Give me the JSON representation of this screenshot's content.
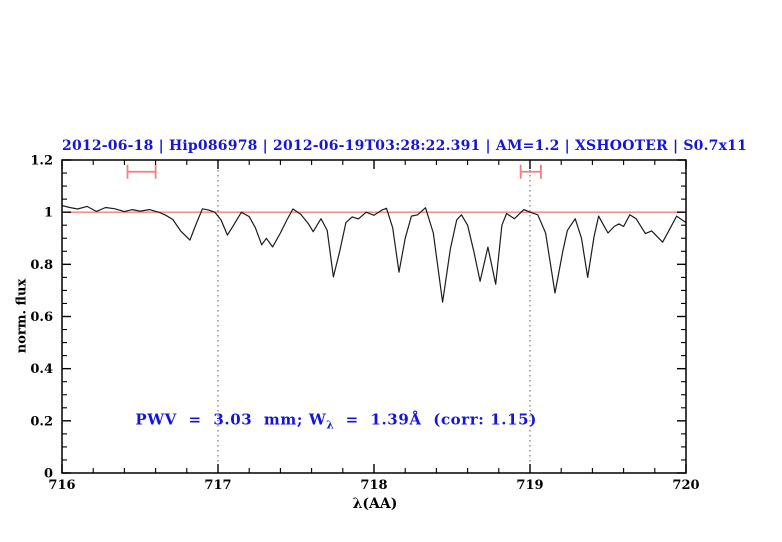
{
  "chart_data": {
    "type": "line",
    "title": "2012-06-18 | Hip086978 | 2012-06-19T03:28:22.391 | AM=1.2 | XSHOOTER | S0.7x11",
    "xlabel": "λ(AA)",
    "ylabel": "norm. flux",
    "xlim": [
      716,
      720
    ],
    "ylim": [
      0,
      1.2
    ],
    "x_major_ticks": [
      716,
      717,
      718,
      719,
      720
    ],
    "x_tick_labels": [
      "716",
      "717",
      "718",
      "719",
      "720"
    ],
    "x_minor_step": 0.2,
    "y_major_ticks": [
      0,
      0.2,
      0.4,
      0.6,
      0.8,
      1,
      1.2
    ],
    "y_tick_labels": [
      "0",
      "0.2",
      "0.4",
      "0.6",
      "0.8",
      "1",
      "1.2"
    ],
    "y_minor_step": 0.05,
    "grid": false,
    "legend": null,
    "dotted_vlines": [
      717,
      719
    ],
    "continuum_y": 1.0,
    "range_markers": [
      {
        "x1": 716.42,
        "x2": 716.6,
        "y": 1.155,
        "cap": 0.027
      },
      {
        "x1": 718.94,
        "x2": 719.07,
        "y": 1.155,
        "cap": 0.027
      }
    ],
    "annotation": {
      "pre": "PWV  =  3.03  mm; W",
      "sub": "λ",
      "post": "  =  1.39Å  (corr: 1.15)",
      "x": 716.47,
      "y": 0.2
    },
    "colors": {
      "title_blue": "#1515d8",
      "continuum": "#ef8080",
      "marker": "#ef8080",
      "spectrum": "#1c1c1c",
      "dotted": "#5a5a5a",
      "axis": "#000000"
    },
    "series": [
      {
        "name": "normalized-telluric-spectrum",
        "color": "#1c1c1c",
        "points": [
          [
            716.0,
            1.025
          ],
          [
            716.05,
            1.018
          ],
          [
            716.1,
            1.012
          ],
          [
            716.16,
            1.022
          ],
          [
            716.22,
            1.003
          ],
          [
            716.28,
            1.018
          ],
          [
            716.34,
            1.013
          ],
          [
            716.4,
            1.002
          ],
          [
            716.45,
            1.01
          ],
          [
            716.5,
            1.004
          ],
          [
            716.56,
            1.01
          ],
          [
            716.62,
            1.0
          ],
          [
            716.66,
            0.99
          ],
          [
            716.71,
            0.972
          ],
          [
            716.76,
            0.928
          ],
          [
            716.82,
            0.893
          ],
          [
            716.86,
            0.955
          ],
          [
            716.9,
            1.013
          ],
          [
            716.94,
            1.008
          ],
          [
            716.98,
            1.0
          ],
          [
            717.02,
            0.97
          ],
          [
            717.06,
            0.912
          ],
          [
            717.1,
            0.95
          ],
          [
            717.15,
            1.0
          ],
          [
            717.2,
            0.983
          ],
          [
            717.24,
            0.94
          ],
          [
            717.28,
            0.875
          ],
          [
            717.31,
            0.9
          ],
          [
            717.35,
            0.867
          ],
          [
            717.4,
            0.92
          ],
          [
            717.44,
            0.968
          ],
          [
            717.48,
            1.012
          ],
          [
            717.53,
            0.992
          ],
          [
            717.58,
            0.955
          ],
          [
            717.61,
            0.925
          ],
          [
            717.64,
            0.955
          ],
          [
            717.66,
            0.975
          ],
          [
            717.7,
            0.93
          ],
          [
            717.74,
            0.752
          ],
          [
            717.78,
            0.85
          ],
          [
            717.82,
            0.96
          ],
          [
            717.86,
            0.982
          ],
          [
            717.9,
            0.974
          ],
          [
            717.95,
            1.0
          ],
          [
            718.0,
            0.988
          ],
          [
            718.05,
            1.008
          ],
          [
            718.08,
            1.015
          ],
          [
            718.12,
            0.94
          ],
          [
            718.16,
            0.77
          ],
          [
            718.2,
            0.9
          ],
          [
            718.24,
            0.985
          ],
          [
            718.28,
            0.99
          ],
          [
            718.33,
            1.017
          ],
          [
            718.38,
            0.92
          ],
          [
            718.44,
            0.655
          ],
          [
            718.49,
            0.86
          ],
          [
            718.53,
            0.97
          ],
          [
            718.56,
            0.99
          ],
          [
            718.6,
            0.95
          ],
          [
            718.64,
            0.85
          ],
          [
            718.68,
            0.735
          ],
          [
            718.73,
            0.866
          ],
          [
            718.78,
            0.724
          ],
          [
            718.82,
            0.95
          ],
          [
            718.85,
            0.995
          ],
          [
            718.9,
            0.975
          ],
          [
            718.96,
            1.01
          ],
          [
            719.0,
            1.0
          ],
          [
            719.05,
            0.99
          ],
          [
            719.1,
            0.92
          ],
          [
            719.16,
            0.69
          ],
          [
            719.21,
            0.85
          ],
          [
            719.24,
            0.93
          ],
          [
            719.29,
            0.975
          ],
          [
            719.33,
            0.9
          ],
          [
            719.37,
            0.75
          ],
          [
            719.41,
            0.905
          ],
          [
            719.44,
            0.985
          ],
          [
            719.47,
            0.952
          ],
          [
            719.5,
            0.92
          ],
          [
            719.54,
            0.945
          ],
          [
            719.57,
            0.955
          ],
          [
            719.6,
            0.945
          ],
          [
            719.64,
            0.99
          ],
          [
            719.68,
            0.975
          ],
          [
            719.74,
            0.918
          ],
          [
            719.78,
            0.928
          ],
          [
            719.85,
            0.885
          ],
          [
            719.9,
            0.94
          ],
          [
            719.94,
            0.985
          ],
          [
            720.0,
            0.96
          ]
        ]
      }
    ]
  }
}
